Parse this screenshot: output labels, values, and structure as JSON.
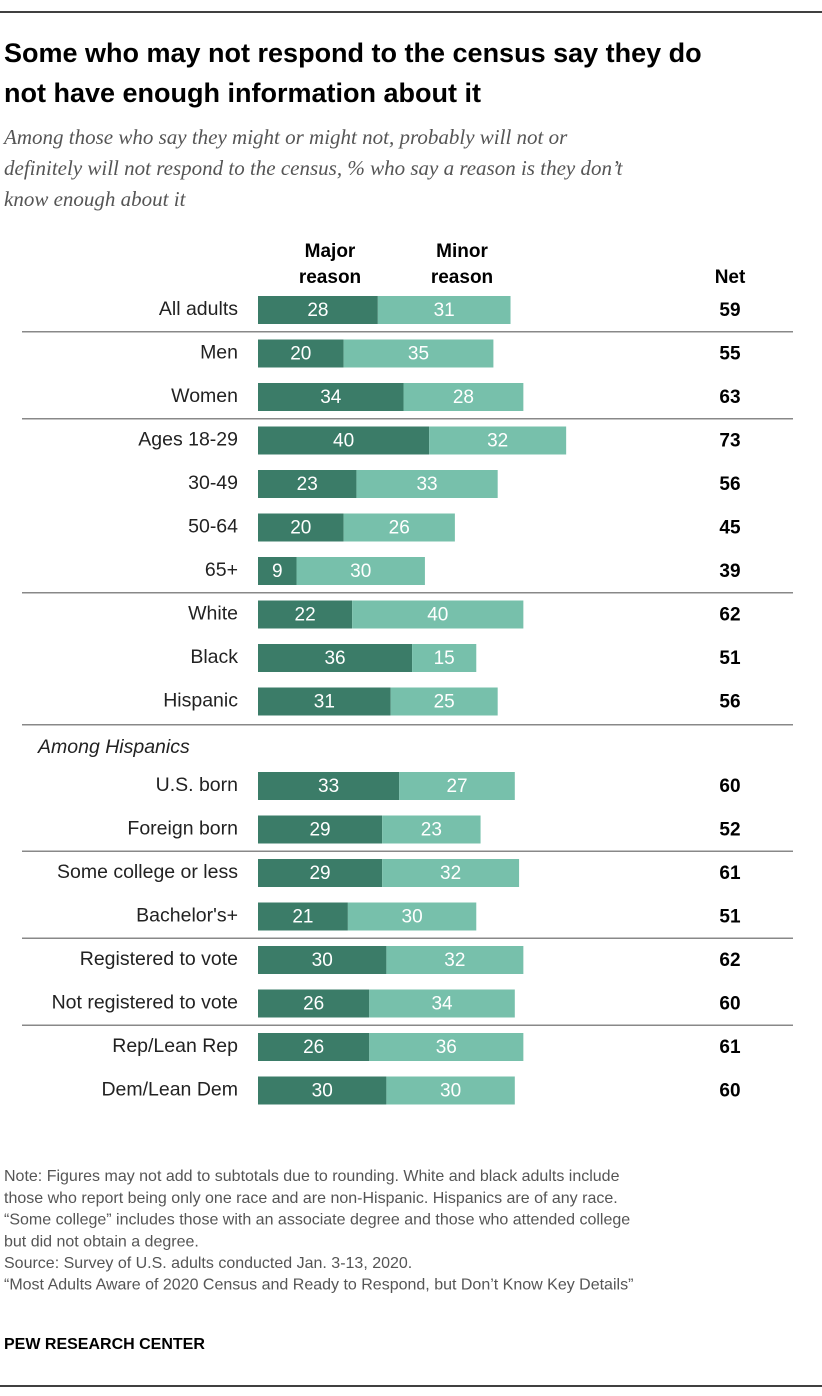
{
  "chart_data": {
    "type": "stacked-bar-horizontal",
    "title_lines": [
      "Some who may not respond to the census say they do",
      "not have enough information about it"
    ],
    "subtitle_lines": [
      "Among those who say they might or might not, probably will not or",
      "definitely will not respond to the census, % who say a reason is they don’t",
      "know enough about it"
    ],
    "categories": [
      "All adults",
      "Men",
      "Women",
      "Ages 18-29",
      "30-49",
      "50-64",
      "65+",
      "White",
      "Black",
      "Hispanic",
      "U.S. born",
      "Foreign born",
      "Some college or less",
      "Bachelor's+",
      "Registered to vote",
      "Not registered to vote",
      "Rep/Lean Rep",
      "Dem/Lean Dem"
    ],
    "series": [
      {
        "name_lines": [
          "Major",
          "reason"
        ],
        "color": "#3b7c68",
        "values": [
          28,
          20,
          34,
          40,
          23,
          20,
          9,
          22,
          36,
          31,
          33,
          29,
          29,
          21,
          30,
          26,
          26,
          30
        ]
      },
      {
        "name_lines": [
          "Minor",
          "reason"
        ],
        "color": "#77c0ab",
        "values": [
          31,
          35,
          28,
          32,
          33,
          26,
          30,
          40,
          15,
          25,
          27,
          23,
          32,
          30,
          32,
          34,
          36,
          30
        ]
      }
    ],
    "net": {
      "name": "Net",
      "values": [
        59,
        55,
        63,
        73,
        56,
        45,
        39,
        62,
        51,
        56,
        60,
        52,
        61,
        51,
        62,
        60,
        61,
        60
      ]
    },
    "group_label": "Among Hispanics",
    "notes": [
      "Note: Figures may not add to subtotals due to rounding. White and black adults include",
      "those who report being only one race and are non-Hispanic. Hispanics are of any race.",
      "“Some college” includes those with an associate degree and those who attended college",
      "but did not obtain a degree.",
      "Source: Survey of U.S. adults conducted Jan. 3-13, 2020.",
      "“Most Adults Aware of 2020 Census and Ready to Respond, but Don’t Know Key Details”"
    ],
    "source_org": "PEW RESEARCH CENTER"
  }
}
